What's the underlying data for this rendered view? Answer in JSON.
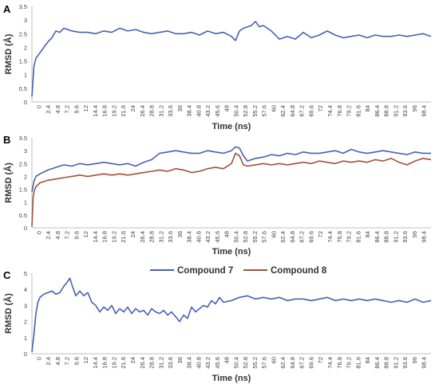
{
  "legend": {
    "items": [
      {
        "label": "Compound 7",
        "color": "#4a5fb5"
      },
      {
        "label": "Compound 8",
        "color": "#a0523a"
      }
    ]
  },
  "colors": {
    "compound7": "#4a5fb5",
    "compound8": "#a0523a"
  },
  "chart_data": [
    {
      "type": "line",
      "panel": "A",
      "xlabel": "Time (ns)",
      "ylabel": "RMSD (Å)",
      "ylim": [
        0,
        3.5
      ],
      "yticks": [
        0,
        0.5,
        1,
        1.5,
        2,
        2.5,
        3,
        3.5
      ],
      "xticks": [
        "0",
        "2.4",
        "4.8",
        "7.2",
        "9.6",
        "12",
        "14.4",
        "16.8",
        "19.2",
        "21.6",
        "24",
        "26.4",
        "28.8",
        "31.2",
        "33.6",
        "36",
        "38.4",
        "40.8",
        "43.2",
        "45.6",
        "48",
        "50.4",
        "52.8",
        "55.2",
        "57.6",
        "60",
        "62.4",
        "64.8",
        "67.2",
        "69.6",
        "72",
        "74.4",
        "76.8",
        "79.2",
        "81.6",
        "84",
        "86.4",
        "88.8",
        "91.2",
        "93.6",
        "96",
        "98.4"
      ],
      "xlim": [
        0,
        100
      ],
      "series": [
        {
          "name": "Compound 7",
          "color": "#4a5fb5",
          "x": [
            0,
            0.5,
            1,
            1.5,
            2,
            3,
            4,
            5,
            6,
            7,
            8,
            10,
            12,
            14,
            16,
            18,
            20,
            22,
            24,
            26,
            28,
            30,
            32,
            34,
            36,
            38,
            40,
            42,
            44,
            46,
            48,
            50,
            51,
            52,
            53,
            54,
            55,
            56,
            57,
            58,
            60,
            62,
            64,
            66,
            68,
            70,
            72,
            74,
            76,
            78,
            80,
            82,
            84,
            86,
            88,
            90,
            92,
            94,
            96,
            98,
            100
          ],
          "y": [
            0.2,
            1.3,
            1.6,
            1.7,
            1.8,
            2.0,
            2.2,
            2.35,
            2.6,
            2.55,
            2.7,
            2.6,
            2.55,
            2.55,
            2.5,
            2.6,
            2.55,
            2.7,
            2.6,
            2.65,
            2.55,
            2.5,
            2.55,
            2.6,
            2.5,
            2.5,
            2.55,
            2.45,
            2.6,
            2.5,
            2.55,
            2.4,
            2.25,
            2.6,
            2.7,
            2.75,
            2.8,
            2.95,
            2.75,
            2.8,
            2.6,
            2.3,
            2.4,
            2.3,
            2.55,
            2.35,
            2.45,
            2.6,
            2.45,
            2.35,
            2.4,
            2.45,
            2.35,
            2.45,
            2.4,
            2.4,
            2.45,
            2.4,
            2.45,
            2.5,
            2.4
          ]
        }
      ]
    },
    {
      "type": "line",
      "panel": "B",
      "xlabel": "Time (ns)",
      "ylabel": "RMSD (Å)",
      "ylim": [
        0,
        3.5
      ],
      "yticks": [
        0,
        0.5,
        1,
        1.5,
        2,
        2.5,
        3,
        3.5
      ],
      "xticks": [
        "0",
        "2.4",
        "4.8",
        "7.2",
        "9.6",
        "12",
        "14.4",
        "16.8",
        "19.2",
        "21.6",
        "24",
        "26.4",
        "28.8",
        "31.2",
        "33.6",
        "36",
        "38.4",
        "40.8",
        "43.2",
        "45.6",
        "48",
        "50.4",
        "52.8",
        "55.2",
        "57.6",
        "60",
        "62.4",
        "64.8",
        "67.2",
        "69.6",
        "72",
        "74.4",
        "76.8",
        "79.2",
        "81.6",
        "84",
        "86.4",
        "88.8",
        "91.2",
        "93.6",
        "96",
        "98.4"
      ],
      "xlim": [
        0,
        100
      ],
      "series": [
        {
          "name": "Compound 7",
          "color": "#4a5fb5",
          "x": [
            0,
            0.5,
            1,
            2,
            4,
            6,
            8,
            10,
            12,
            14,
            16,
            18,
            20,
            22,
            24,
            26,
            28,
            30,
            32,
            34,
            36,
            38,
            40,
            42,
            44,
            46,
            48,
            50,
            51,
            52,
            53,
            54,
            56,
            58,
            60,
            62,
            64,
            66,
            68,
            70,
            72,
            74,
            76,
            78,
            80,
            82,
            84,
            86,
            88,
            90,
            92,
            94,
            96,
            98,
            100
          ],
          "y": [
            1.4,
            1.8,
            2.0,
            2.1,
            2.25,
            2.35,
            2.45,
            2.4,
            2.5,
            2.45,
            2.5,
            2.55,
            2.5,
            2.45,
            2.5,
            2.4,
            2.55,
            2.65,
            2.9,
            2.95,
            3.0,
            2.95,
            2.9,
            2.9,
            3.0,
            2.95,
            2.9,
            3.0,
            3.15,
            3.1,
            2.8,
            2.6,
            2.7,
            2.75,
            2.85,
            2.8,
            2.9,
            2.85,
            2.95,
            2.9,
            2.9,
            2.95,
            3.0,
            2.9,
            3.05,
            2.95,
            2.9,
            2.95,
            3.0,
            2.95,
            2.9,
            2.85,
            2.95,
            2.9,
            2.9
          ]
        },
        {
          "name": "Compound 8",
          "color": "#a0523a",
          "x": [
            0,
            0.3,
            0.6,
            1,
            2,
            4,
            6,
            8,
            10,
            12,
            14,
            16,
            18,
            20,
            22,
            24,
            26,
            28,
            30,
            32,
            34,
            36,
            38,
            40,
            42,
            44,
            46,
            48,
            50,
            51,
            52,
            53,
            54,
            56,
            58,
            60,
            62,
            64,
            66,
            68,
            70,
            72,
            74,
            76,
            78,
            80,
            82,
            84,
            86,
            88,
            90,
            92,
            94,
            96,
            98,
            100
          ],
          "y": [
            0.05,
            1.2,
            1.45,
            1.6,
            1.75,
            1.85,
            1.9,
            1.95,
            2.0,
            2.05,
            2.0,
            2.05,
            2.1,
            2.05,
            2.1,
            2.05,
            2.1,
            2.15,
            2.2,
            2.25,
            2.2,
            2.3,
            2.25,
            2.15,
            2.2,
            2.3,
            2.35,
            2.3,
            2.5,
            2.9,
            2.8,
            2.45,
            2.4,
            2.45,
            2.5,
            2.45,
            2.5,
            2.45,
            2.5,
            2.55,
            2.5,
            2.6,
            2.55,
            2.5,
            2.6,
            2.55,
            2.6,
            2.55,
            2.65,
            2.6,
            2.7,
            2.55,
            2.45,
            2.6,
            2.7,
            2.65
          ]
        }
      ]
    },
    {
      "type": "line",
      "panel": "C",
      "xlabel": "Time (ns)",
      "ylabel": "RMSD (Å)",
      "ylim": [
        0,
        5
      ],
      "yticks": [
        0,
        1,
        2,
        3,
        4,
        5
      ],
      "xticks": [
        "0",
        "2.4",
        "4.8",
        "7.2",
        "9.6",
        "12",
        "14.4",
        "16.8",
        "19.2",
        "21.6",
        "24",
        "26.4",
        "28.8",
        "31.2",
        "33.6",
        "36",
        "38.4",
        "40.8",
        "43.2",
        "45.6",
        "48",
        "50.4",
        "52.8",
        "55.2",
        "57.6",
        "60",
        "62.4",
        "64.8",
        "67.2",
        "69.6",
        "72",
        "74.4",
        "76.8",
        "79.2",
        "81.6",
        "84",
        "86.4",
        "88.8",
        "91.2",
        "93.6",
        "96",
        "98.4"
      ],
      "xlim": [
        0,
        100
      ],
      "series": [
        {
          "name": "Compound 7",
          "color": "#4a5fb5",
          "x": [
            0,
            0.5,
            1,
            1.5,
            2,
            3,
            4,
            5,
            6,
            7,
            8,
            9,
            9.5,
            10,
            11,
            12,
            13,
            14,
            15,
            16,
            17,
            18,
            19,
            20,
            21,
            22,
            23,
            24,
            25,
            26,
            27,
            28,
            29,
            30,
            31,
            32,
            33,
            34,
            35,
            36,
            37,
            38,
            39,
            40,
            41,
            42,
            43,
            44,
            45,
            46,
            47,
            48,
            50,
            52,
            54,
            56,
            58,
            60,
            62,
            64,
            66,
            68,
            70,
            72,
            74,
            76,
            78,
            80,
            82,
            84,
            86,
            88,
            90,
            92,
            94,
            96,
            98,
            100
          ],
          "y": [
            0.1,
            1.2,
            2.5,
            3.2,
            3.5,
            3.7,
            3.8,
            3.9,
            3.7,
            3.8,
            4.2,
            4.5,
            4.7,
            4.3,
            3.6,
            3.9,
            3.6,
            3.8,
            3.2,
            3.0,
            2.6,
            2.9,
            2.7,
            3.0,
            2.5,
            2.8,
            2.6,
            2.9,
            2.5,
            2.8,
            2.6,
            2.7,
            2.4,
            2.8,
            2.6,
            2.5,
            2.7,
            2.4,
            2.6,
            2.3,
            2.0,
            2.4,
            2.2,
            2.9,
            2.6,
            2.8,
            3.0,
            2.9,
            3.3,
            3.1,
            3.5,
            3.2,
            3.3,
            3.5,
            3.6,
            3.4,
            3.5,
            3.4,
            3.5,
            3.3,
            3.4,
            3.4,
            3.3,
            3.4,
            3.5,
            3.3,
            3.4,
            3.3,
            3.4,
            3.3,
            3.4,
            3.3,
            3.2,
            3.3,
            3.2,
            3.4,
            3.2,
            3.3
          ]
        }
      ]
    }
  ]
}
